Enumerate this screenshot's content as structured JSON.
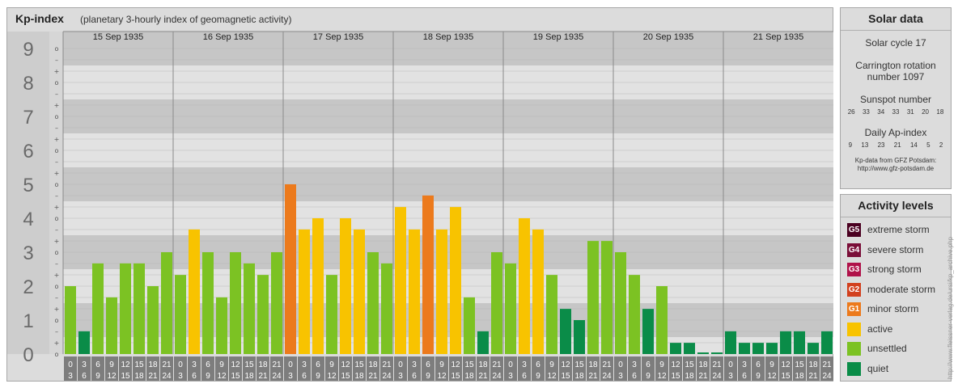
{
  "header": {
    "title": "Kp-index",
    "subtitle": "(planetary 3-hourly index of geomagnetic activity)"
  },
  "chart_data": {
    "type": "bar",
    "title": "Kp-index",
    "subtitle": "(planetary 3-hourly index of geomagnetic activity)",
    "ylim": [
      0,
      9
    ],
    "y_ticks": [
      "0",
      "1",
      "2",
      "3",
      "4",
      "5",
      "6",
      "7",
      "8",
      "9"
    ],
    "minor_tick_labels": [
      "o",
      "+",
      "–"
    ],
    "days": [
      "15 Sep 1935",
      "16 Sep 1935",
      "17 Sep 1935",
      "18 Sep 1935",
      "19 Sep 1935",
      "20 Sep 1935",
      "21 Sep 1935"
    ],
    "interval_labels": [
      [
        "0",
        "3"
      ],
      [
        "3",
        "6"
      ],
      [
        "6",
        "9"
      ],
      [
        "9",
        "12"
      ],
      [
        "12",
        "15"
      ],
      [
        "15",
        "18"
      ],
      [
        "18",
        "21"
      ],
      [
        "21",
        "24"
      ]
    ],
    "values": [
      2.0,
      0.67,
      2.67,
      1.67,
      2.67,
      2.67,
      2.0,
      3.0,
      2.33,
      3.67,
      3.0,
      1.67,
      3.0,
      2.67,
      2.33,
      3.0,
      5.0,
      3.67,
      4.0,
      2.33,
      4.0,
      3.67,
      3.0,
      2.67,
      4.33,
      3.67,
      4.67,
      3.67,
      4.33,
      1.67,
      0.67,
      3.0,
      2.67,
      4.0,
      3.67,
      2.33,
      1.33,
      1.0,
      3.33,
      3.33,
      3.0,
      2.33,
      1.33,
      2.0,
      0.33,
      0.33,
      0.0,
      0.0,
      0.67,
      0.33,
      0.33,
      0.33,
      0.67,
      0.67,
      0.33,
      0.67
    ],
    "colors": {
      "quiet": "#0a8c48",
      "unsettled": "#7cc223",
      "active": "#f8c300",
      "minor_storm": "#ec7a1c",
      "moderate_storm": "#d2401e",
      "strong_storm": "#b0124a",
      "severe_storm": "#7a0e38",
      "extreme_storm": "#4a0020"
    }
  },
  "solar": {
    "title": "Solar data",
    "cycle": "Solar cycle 17",
    "carrington_line1": "Carrington rotation",
    "carrington_line2": "number 1097",
    "sunspot_label": "Sunspot number",
    "sunspots": [
      "26",
      "33",
      "34",
      "33",
      "31",
      "20",
      "18"
    ],
    "ap_label": "Daily Ap-index",
    "ap_values": [
      "9",
      "13",
      "23",
      "21",
      "14",
      "5",
      "2"
    ],
    "source_line1": "Kp-data from GFZ Potsdam:",
    "source_line2": "http://www.gfz-potsdam.de"
  },
  "activity": {
    "title": "Activity levels",
    "levels": [
      {
        "code": "G5",
        "label": "extreme storm",
        "color": "#4a0020"
      },
      {
        "code": "G4",
        "label": "severe storm",
        "color": "#7a0e38"
      },
      {
        "code": "G3",
        "label": "strong storm",
        "color": "#b0124a"
      },
      {
        "code": "G2",
        "label": "moderate storm",
        "color": "#d2401e"
      },
      {
        "code": "G1",
        "label": "minor storm",
        "color": "#ec7a1c"
      },
      {
        "code": "",
        "label": "active",
        "color": "#f8c300"
      },
      {
        "code": "",
        "label": "unsettled",
        "color": "#7cc223"
      },
      {
        "code": "",
        "label": "quiet",
        "color": "#0a8c48"
      }
    ]
  },
  "watermark": "http://www.fleissner-verlag.de/ursi/kp_archive.php"
}
